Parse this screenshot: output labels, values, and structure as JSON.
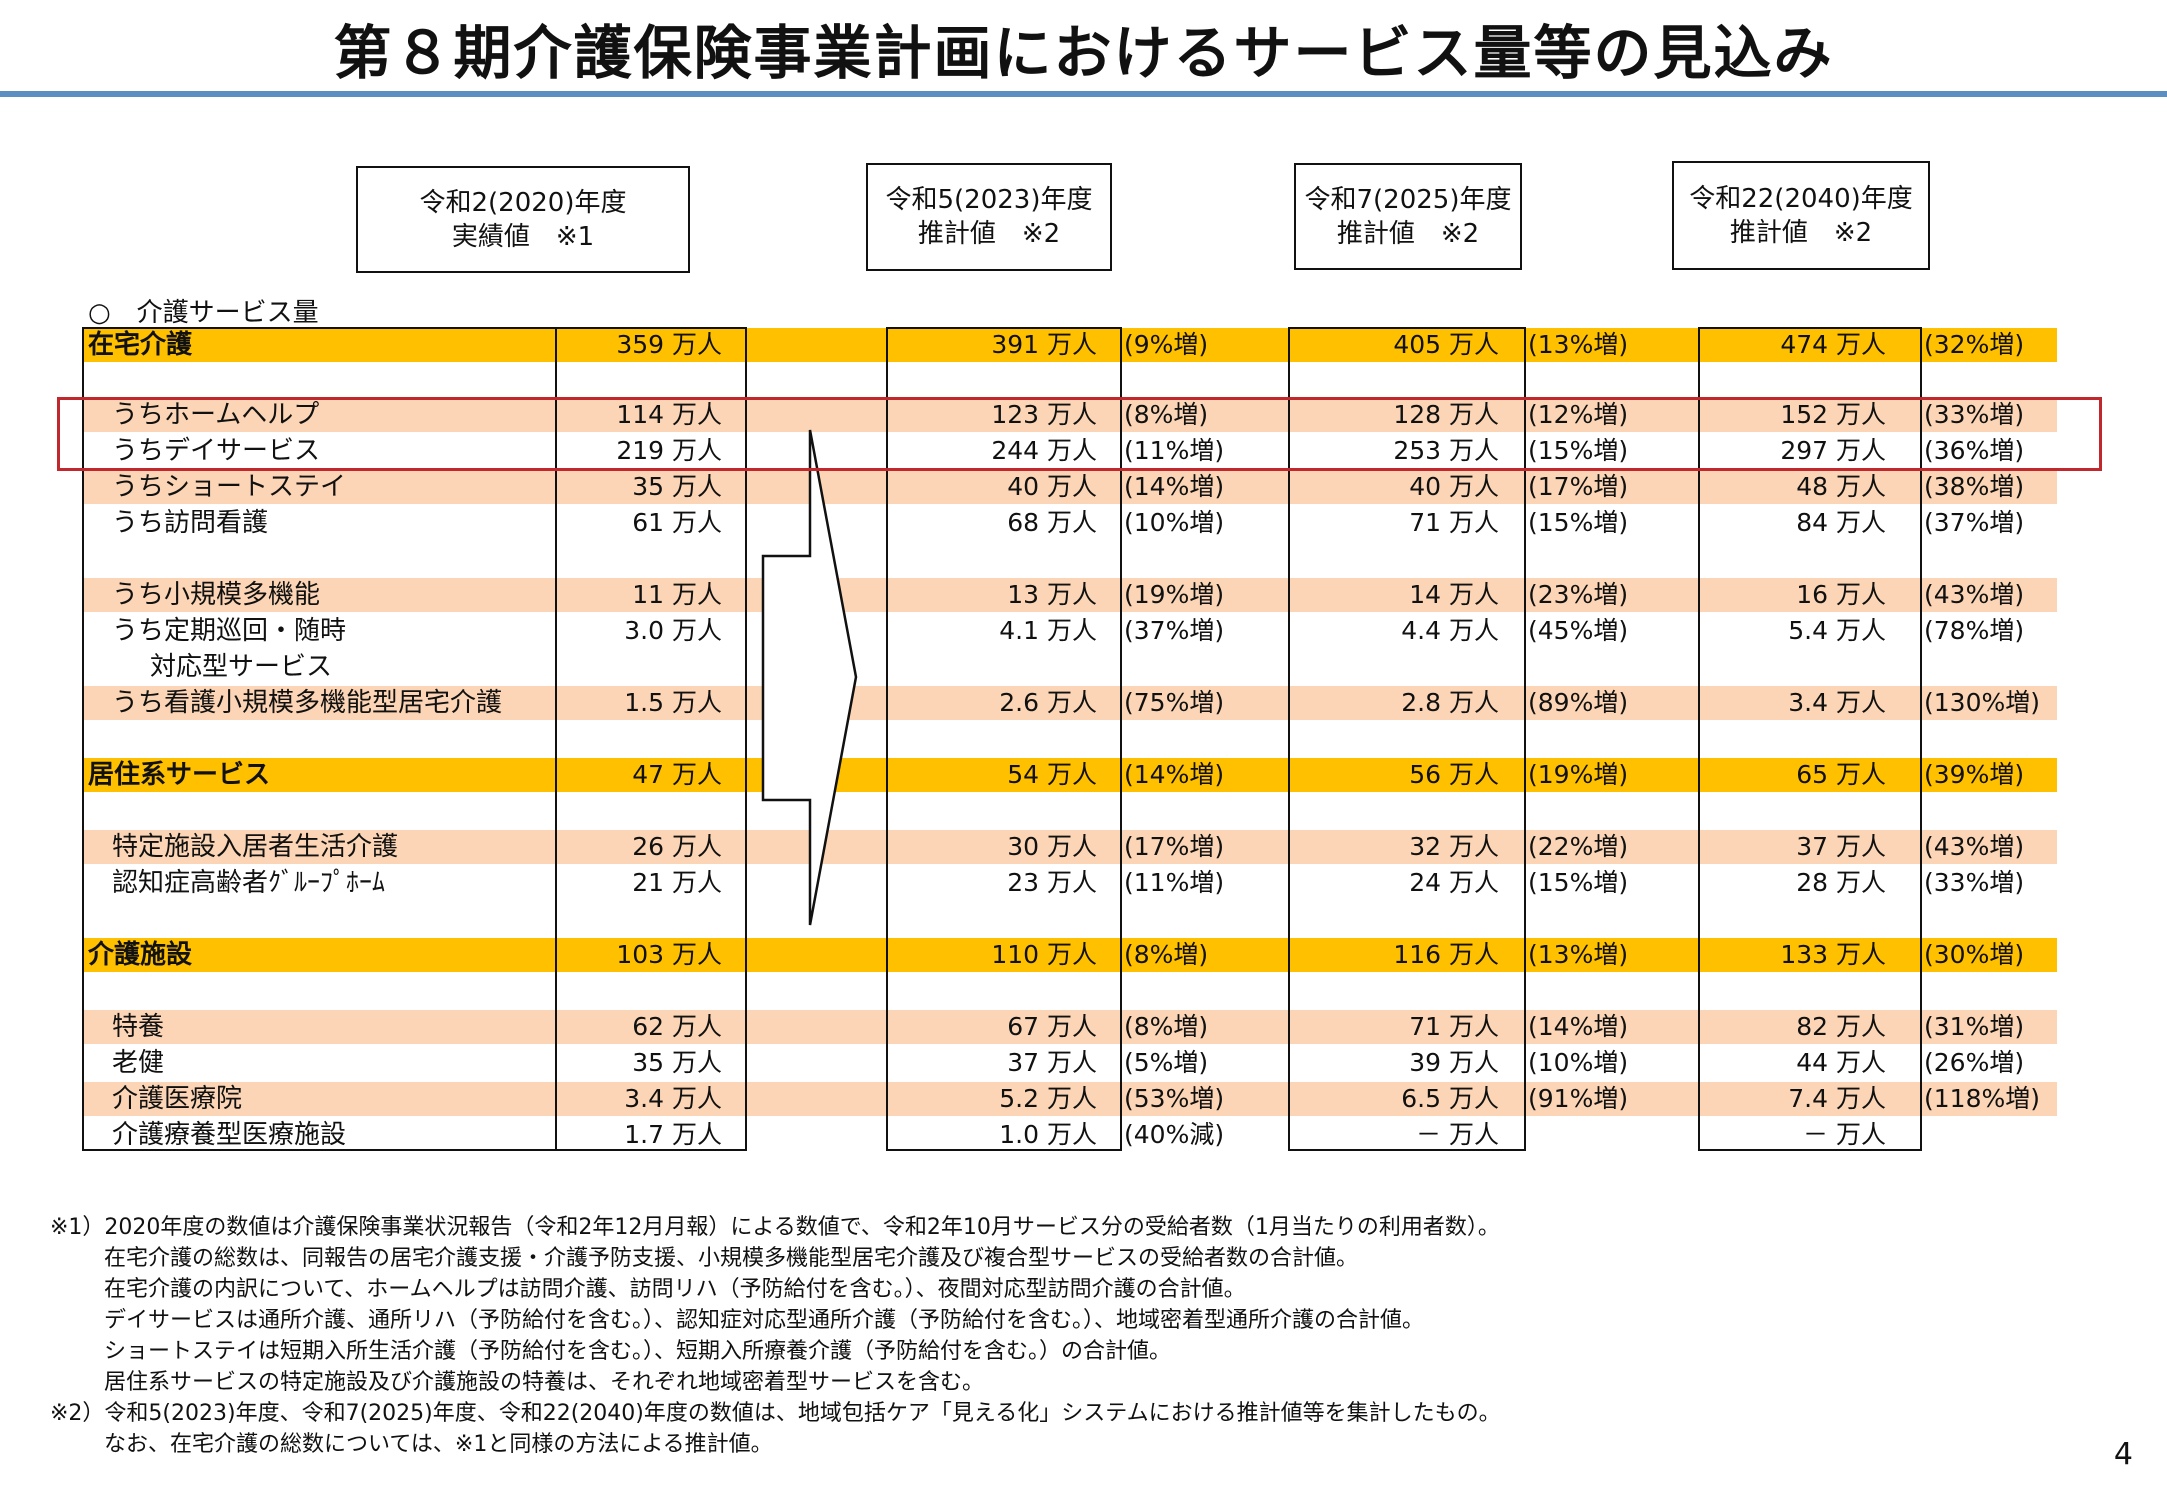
{
  "title": "第８期介護保険事業計画におけるサービス量等の見込み",
  "column_headers": [
    {
      "line1": "令和2(2020)年度",
      "line2": "実績値　※1"
    },
    {
      "line1": "令和5(2023)年度",
      "line2": "推計値　※2"
    },
    {
      "line1": "令和7(2025)年度",
      "line2": "推計値　※2"
    },
    {
      "line1": "令和22(2040)年度",
      "line2": "推計値　※2"
    }
  ],
  "section_label": "○　介護サービス量",
  "rows": [
    {
      "label": "在宅介護",
      "type": "major",
      "v2020": "359 万人",
      "v2023": "391 万人",
      "p2023": "(9%増)",
      "v2025": "405 万人",
      "p2025": "(13%増)",
      "v2040": "474 万人",
      "p2040": "(32%増)"
    },
    {
      "label": "うちホームヘルプ",
      "type": "sub",
      "v2020": "114 万人",
      "v2023": "123 万人",
      "p2023": "(8%増)",
      "v2025": "128 万人",
      "p2025": "(12%増)",
      "v2040": "152 万人",
      "p2040": "(33%増)"
    },
    {
      "label": "うちデイサービス",
      "type": "sub",
      "v2020": "219 万人",
      "v2023": "244 万人",
      "p2023": "(11%増)",
      "v2025": "253 万人",
      "p2025": "(15%増)",
      "v2040": "297 万人",
      "p2040": "(36%増)"
    },
    {
      "label": "うちショートステイ",
      "type": "sub",
      "v2020": "35 万人",
      "v2023": "40 万人",
      "p2023": "(14%増)",
      "v2025": "40 万人",
      "p2025": "(17%増)",
      "v2040": "48 万人",
      "p2040": "(38%増)"
    },
    {
      "label": "うち訪問看護",
      "type": "sub",
      "v2020": "61 万人",
      "v2023": "68 万人",
      "p2023": "(10%増)",
      "v2025": "71 万人",
      "p2025": "(15%増)",
      "v2040": "84 万人",
      "p2040": "(37%増)"
    },
    {
      "label": "うち小規模多機能",
      "type": "sub",
      "v2020": "11 万人",
      "v2023": "13 万人",
      "p2023": "(19%増)",
      "v2025": "14 万人",
      "p2025": "(23%増)",
      "v2040": "16 万人",
      "p2040": "(43%増)"
    },
    {
      "label": "うち定期巡回・随時",
      "label2": "対応型サービス",
      "type": "sub",
      "v2020": "3.0 万人",
      "v2023": "4.1 万人",
      "p2023": "(37%増)",
      "v2025": "4.4 万人",
      "p2025": "(45%増)",
      "v2040": "5.4 万人",
      "p2040": "(78%増)"
    },
    {
      "label": "うち看護小規模多機能型居宅介護",
      "type": "sub",
      "v2020": "1.5 万人",
      "v2023": "2.6 万人",
      "p2023": "(75%増)",
      "v2025": "2.8 万人",
      "p2025": "(89%増)",
      "v2040": "3.4 万人",
      "p2040": "(130%増)"
    },
    {
      "label": "居住系サービス",
      "type": "major",
      "v2020": "47 万人",
      "v2023": "54 万人",
      "p2023": "(14%増)",
      "v2025": "56 万人",
      "p2025": "(19%増)",
      "v2040": "65 万人",
      "p2040": "(39%増)"
    },
    {
      "label": "特定施設入居者生活介護",
      "type": "sub",
      "v2020": "26 万人",
      "v2023": "30 万人",
      "p2023": "(17%増)",
      "v2025": "32 万人",
      "p2025": "(22%増)",
      "v2040": "37 万人",
      "p2040": "(43%増)"
    },
    {
      "label": "認知症高齢者ｸﾞﾙｰﾌﾟﾎｰﾑ",
      "type": "sub",
      "v2020": "21 万人",
      "v2023": "23 万人",
      "p2023": "(11%増)",
      "v2025": "24 万人",
      "p2025": "(15%増)",
      "v2040": "28 万人",
      "p2040": "(33%増)"
    },
    {
      "label": "介護施設",
      "type": "major",
      "v2020": "103 万人",
      "v2023": "110 万人",
      "p2023": "(8%増)",
      "v2025": "116 万人",
      "p2025": "(13%増)",
      "v2040": "133 万人",
      "p2040": "(30%増)"
    },
    {
      "label": "特養",
      "type": "sub",
      "v2020": "62 万人",
      "v2023": "67 万人",
      "p2023": "(8%増)",
      "v2025": "71 万人",
      "p2025": "(14%増)",
      "v2040": "82 万人",
      "p2040": "(31%増)"
    },
    {
      "label": "老健",
      "type": "sub",
      "v2020": "35 万人",
      "v2023": "37 万人",
      "p2023": "(5%増)",
      "v2025": "39 万人",
      "p2025": "(10%増)",
      "v2040": "44 万人",
      "p2040": "(26%増)"
    },
    {
      "label": "介護医療院",
      "type": "sub",
      "v2020": "3.4 万人",
      "v2023": "5.2 万人",
      "p2023": "(53%増)",
      "v2025": "6.5 万人",
      "p2025": "(91%増)",
      "v2040": "7.4 万人",
      "p2040": "(118%増)"
    },
    {
      "label": "介護療養型医療施設",
      "type": "sub",
      "v2020": "1.7 万人",
      "v2023": "1.0 万人",
      "p2023": "(40%減)",
      "v2025": "－ 万人",
      "p2025": "",
      "v2040": "－ 万人",
      "p2040": ""
    }
  ],
  "notes": [
    "※1）2020年度の数値は介護保険事業状況報告（令和2年12月月報）による数値で、令和2年10月サービス分の受給者数（1月当たりの利用者数）。",
    "在宅介護の総数は、同報告の居宅介護支援・介護予防支援、小規模多機能型居宅介護及び複合型サービスの受給者数の合計値。",
    "在宅介護の内訳について、ホームヘルプは訪問介護、訪問リハ（予防給付を含む。）、夜間対応型訪問介護の合計値。",
    "デイサービスは通所介護、通所リハ（予防給付を含む。）、認知症対応型通所介護（予防給付を含む。）、地域密着型通所介護の合計値。",
    "ショートステイは短期入所生活介護（予防給付を含む。）、短期入所療養介護（予防給付を含む。）の合計値。",
    "居住系サービスの特定施設及び介護施設の特養は、それぞれ地域密着型サービスを含む。",
    "※2）令和5(2023)年度、令和7(2025)年度、令和22(2040)年度の数値は、地域包括ケア「見える化」システムにおける推計値等を集計したもの。",
    "なお、在宅介護の総数については、※1と同様の方法による推計値。"
  ],
  "page_number": "4"
}
